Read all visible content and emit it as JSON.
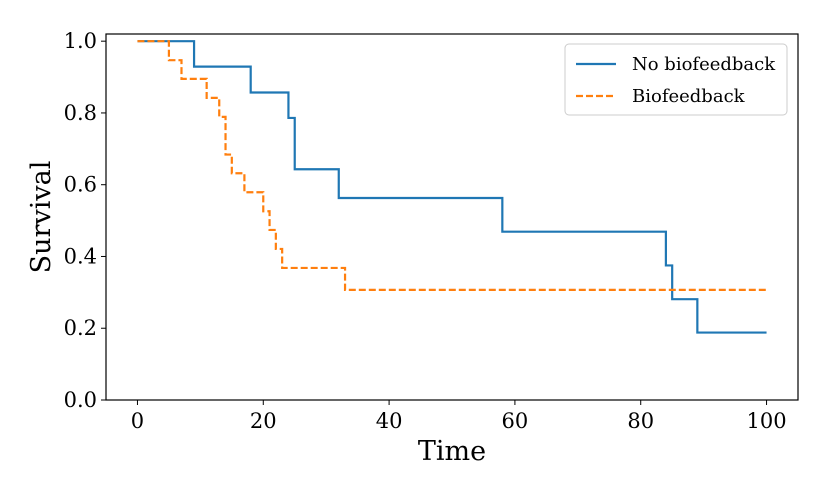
{
  "chart_data": {
    "type": "line",
    "title": "",
    "xlabel": "Time",
    "ylabel": "Survival",
    "xlim": [
      -5,
      105
    ],
    "ylim": [
      0,
      1.02
    ],
    "xticks": [
      0,
      20,
      40,
      60,
      80,
      100
    ],
    "yticks": [
      0.0,
      0.2,
      0.4,
      0.6,
      0.8,
      1.0
    ],
    "xtick_labels": [
      "0",
      "20",
      "40",
      "60",
      "80",
      "100"
    ],
    "ytick_labels": [
      "0.0",
      "0.2",
      "0.4",
      "0.6",
      "0.8",
      "1.0"
    ],
    "grid": false,
    "legend_position": "top-right",
    "series": [
      {
        "name": "No biofeedback",
        "color": "#1f77b4",
        "style": "solid",
        "step": true,
        "x": [
          0,
          9,
          18,
          24,
          25,
          32,
          58,
          84,
          85,
          89,
          100
        ],
        "y": [
          1.0,
          0.929,
          0.857,
          0.786,
          0.643,
          0.563,
          0.469,
          0.375,
          0.281,
          0.188,
          0.188
        ]
      },
      {
        "name": "Biofeedback",
        "color": "#ff7f0e",
        "style": "dashed",
        "step": true,
        "x": [
          0,
          5,
          7,
          11,
          13,
          14,
          15,
          17,
          20,
          21,
          22,
          23,
          33,
          100
        ],
        "y": [
          1.0,
          0.947,
          0.895,
          0.842,
          0.789,
          0.684,
          0.632,
          0.579,
          0.526,
          0.474,
          0.421,
          0.368,
          0.307,
          0.307
        ]
      }
    ]
  }
}
